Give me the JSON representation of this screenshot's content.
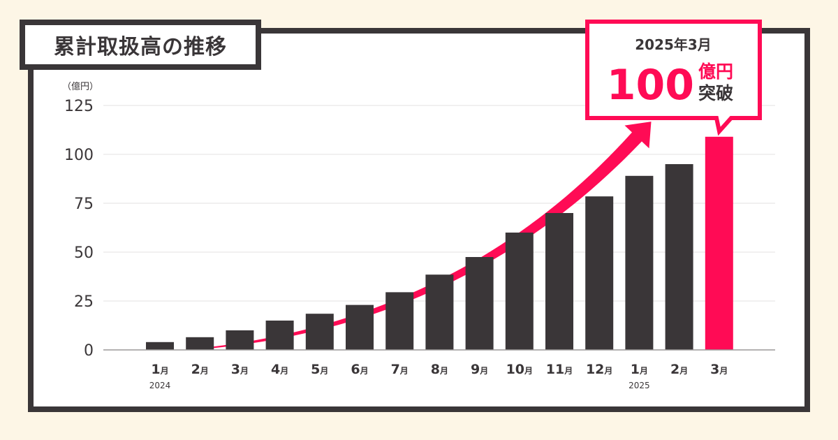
{
  "colors": {
    "bar": "#3a3638",
    "highlight": "#ff0b55",
    "frame": "#3a3638",
    "background": "#fdf6e6"
  },
  "chart_data": {
    "type": "bar",
    "title": "累計取扱高の推移",
    "ylabel": "（億円）",
    "xlabel": "",
    "ylim": [
      0,
      125
    ],
    "yticks": [
      0,
      25,
      50,
      75,
      100,
      125
    ],
    "grid": true,
    "categories": [
      {
        "num": "1",
        "unit": "月",
        "year": "2024"
      },
      {
        "num": "2",
        "unit": "月",
        "year": ""
      },
      {
        "num": "3",
        "unit": "月",
        "year": ""
      },
      {
        "num": "4",
        "unit": "月",
        "year": ""
      },
      {
        "num": "5",
        "unit": "月",
        "year": ""
      },
      {
        "num": "6",
        "unit": "月",
        "year": ""
      },
      {
        "num": "7",
        "unit": "月",
        "year": ""
      },
      {
        "num": "8",
        "unit": "月",
        "year": ""
      },
      {
        "num": "9",
        "unit": "月",
        "year": ""
      },
      {
        "num": "10",
        "unit": "月",
        "year": ""
      },
      {
        "num": "11",
        "unit": "月",
        "year": ""
      },
      {
        "num": "12",
        "unit": "月",
        "year": ""
      },
      {
        "num": "1",
        "unit": "月",
        "year": "2025"
      },
      {
        "num": "2",
        "unit": "月",
        "year": ""
      },
      {
        "num": "3",
        "unit": "月",
        "year": ""
      }
    ],
    "values": [
      4,
      6.5,
      10,
      15,
      18.5,
      23,
      29.5,
      38.5,
      47.5,
      60,
      70,
      78.5,
      89,
      95,
      109
    ],
    "highlight_index": 14,
    "trend_arrow": true,
    "annotation": {
      "date": "2025年3月",
      "number": "100",
      "unit": "億円",
      "suffix": "突破"
    }
  }
}
